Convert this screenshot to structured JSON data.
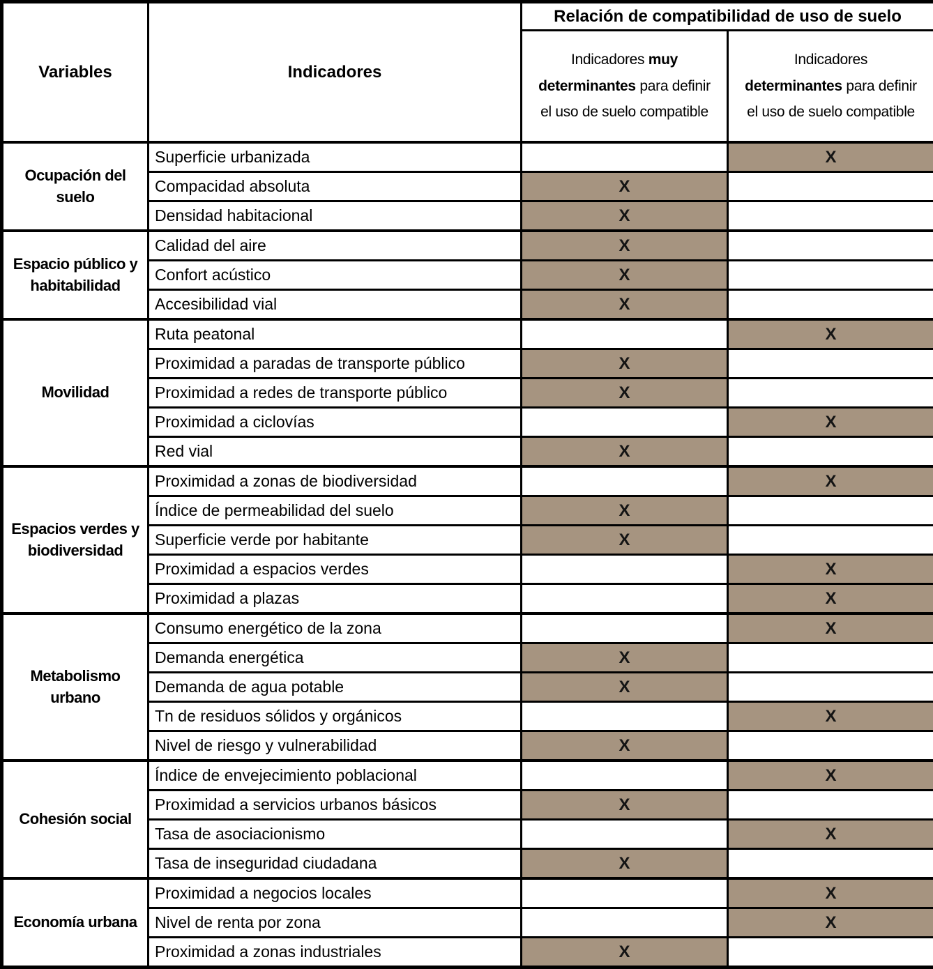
{
  "columns": {
    "variables": "Variables",
    "indicadores": "Indicadores",
    "compat_title": "Relación de compatibilidad de uso de suelo",
    "muy": {
      "prefix": "Indicadores ",
      "bold": "muy\ndeterminantes",
      "suffix": " para definir\nel uso de suelo compatible"
    },
    "det": {
      "prefix": "Indicadores\n",
      "bold": "determinantes",
      "suffix": " para definir\nel uso de suelo compatible"
    }
  },
  "mark_symbol": "X",
  "colors": {
    "highlight": "#a69480",
    "border": "#000000",
    "text": "#000000",
    "background": "#ffffff"
  },
  "groups": [
    {
      "variable": "Ocupación del suelo",
      "rows": [
        {
          "indicator": "Superficie urbanizada",
          "mark": "det"
        },
        {
          "indicator": "Compacidad absoluta",
          "mark": "muy"
        },
        {
          "indicator": "Densidad habitacional",
          "mark": "muy"
        }
      ]
    },
    {
      "variable": "Espacio público y habitabilidad",
      "rows": [
        {
          "indicator": "Calidad del aire",
          "mark": "muy"
        },
        {
          "indicator": "Confort acústico",
          "mark": "muy"
        },
        {
          "indicator": "Accesibilidad vial",
          "mark": "muy"
        }
      ]
    },
    {
      "variable": "Movilidad",
      "rows": [
        {
          "indicator": "Ruta peatonal",
          "mark": "det"
        },
        {
          "indicator": "Proximidad a paradas de transporte público",
          "mark": "muy"
        },
        {
          "indicator": "Proximidad a redes de transporte público",
          "mark": "muy"
        },
        {
          "indicator": "Proximidad a ciclovías",
          "mark": "det"
        },
        {
          "indicator": "Red vial",
          "mark": "muy"
        }
      ]
    },
    {
      "variable": "Espacios verdes y biodiversidad",
      "rows": [
        {
          "indicator": "Proximidad a zonas de biodiversidad",
          "mark": "det"
        },
        {
          "indicator": "Índice de permeabilidad del suelo",
          "mark": "muy"
        },
        {
          "indicator": "Superficie verde por habitante",
          "mark": "muy"
        },
        {
          "indicator": "Proximidad a espacios verdes",
          "mark": "det"
        },
        {
          "indicator": "Proximidad a plazas",
          "mark": "det"
        }
      ]
    },
    {
      "variable": "Metabolismo urbano",
      "rows": [
        {
          "indicator": "Consumo energético de la zona",
          "mark": "det"
        },
        {
          "indicator": "Demanda energética",
          "mark": "muy"
        },
        {
          "indicator": "Demanda de agua potable",
          "mark": "muy"
        },
        {
          "indicator": "Tn de residuos sólidos y orgánicos",
          "mark": "det"
        },
        {
          "indicator": "Nivel de riesgo y vulnerabilidad",
          "mark": "muy"
        }
      ]
    },
    {
      "variable": "Cohesión social",
      "rows": [
        {
          "indicator": "Índice de envejecimiento poblacional",
          "mark": "det"
        },
        {
          "indicator": "Proximidad a servicios urbanos básicos",
          "mark": "muy"
        },
        {
          "indicator": "Tasa de asociacionismo",
          "mark": "det"
        },
        {
          "indicator": "Tasa de inseguridad ciudadana",
          "mark": "muy"
        }
      ]
    },
    {
      "variable": "Economía urbana",
      "rows": [
        {
          "indicator": "Proximidad a negocios locales",
          "mark": "det"
        },
        {
          "indicator": "Nivel de renta por zona",
          "mark": "det"
        },
        {
          "indicator": "Proximidad a zonas industriales",
          "mark": "muy"
        }
      ]
    }
  ]
}
